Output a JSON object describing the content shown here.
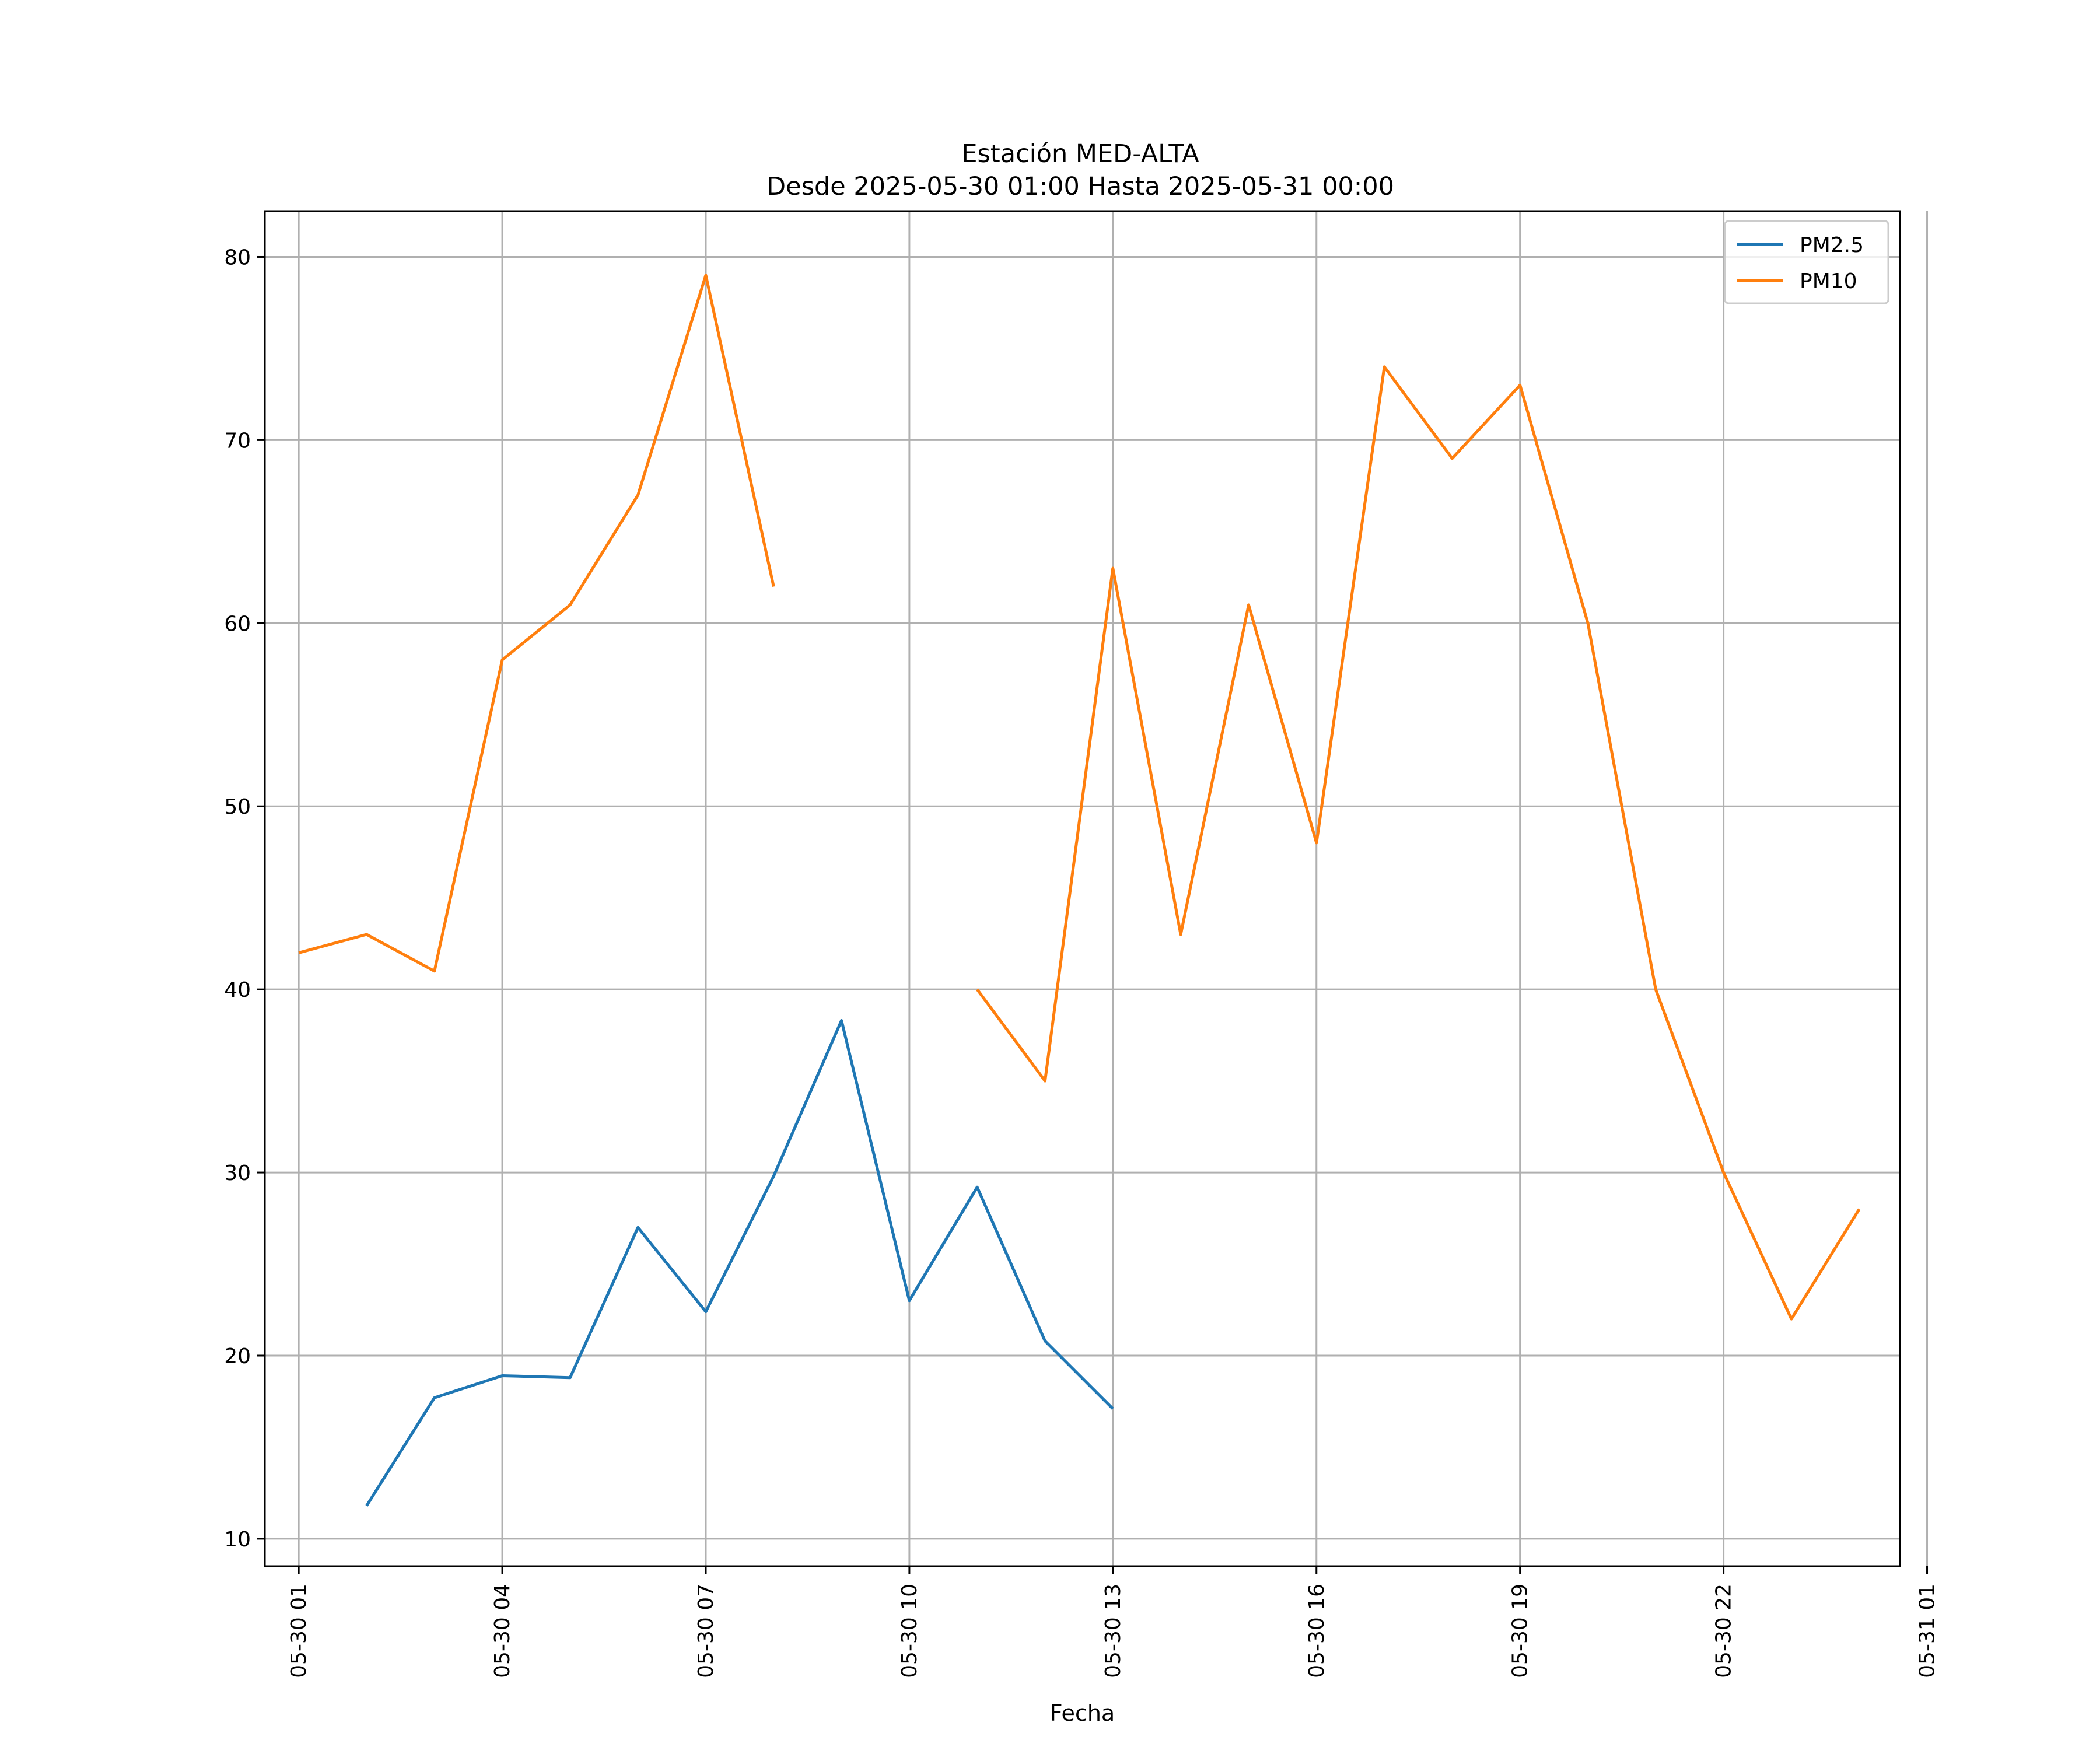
{
  "chart_data": {
    "type": "line",
    "title_line1": "Estación MED-ALTA",
    "title_line2": "Desde 2025-05-30 01:00 Hasta 2025-05-31 00:00",
    "xlabel": "Fecha",
    "ylabel": "",
    "x_range": [
      0.5,
      24.6
    ],
    "ylim": [
      8.5,
      82.5
    ],
    "grid": true,
    "legend_position": "top-right",
    "x_ticks": [
      {
        "x": 1,
        "label": "05-30 01"
      },
      {
        "x": 4,
        "label": "05-30 04"
      },
      {
        "x": 7,
        "label": "05-30 07"
      },
      {
        "x": 10,
        "label": "05-30 10"
      },
      {
        "x": 13,
        "label": "05-30 13"
      },
      {
        "x": 16,
        "label": "05-30 16"
      },
      {
        "x": 19,
        "label": "05-30 19"
      },
      {
        "x": 22,
        "label": "05-30 22"
      },
      {
        "x": 25,
        "label": "05-31 01"
      }
    ],
    "y_ticks": [
      10,
      20,
      30,
      40,
      50,
      60,
      70,
      80
    ],
    "series": [
      {
        "name": "PM2.5",
        "color": "#1f77b4",
        "x": [
          1,
          2,
          3,
          4,
          5,
          6,
          7,
          8,
          9,
          10,
          11,
          12,
          13,
          14,
          15,
          16,
          17,
          18,
          19,
          20,
          21,
          22,
          23,
          24
        ],
        "values": [
          null,
          11.8,
          17.7,
          18.9,
          18.8,
          27.0,
          22.4,
          29.8,
          38.3,
          23.0,
          29.2,
          20.8,
          17.1,
          null,
          null,
          null,
          null,
          null,
          null,
          null,
          null,
          null,
          null,
          null
        ]
      },
      {
        "name": "PM10",
        "color": "#ff7f0e",
        "x": [
          1,
          2,
          3,
          4,
          5,
          6,
          7,
          8,
          9,
          10,
          11,
          12,
          13,
          14,
          15,
          16,
          17,
          18,
          19,
          20,
          21,
          22,
          23,
          24
        ],
        "values": [
          42,
          43,
          41,
          58,
          61,
          67,
          79,
          62,
          null,
          null,
          40,
          35,
          63,
          43,
          61,
          48,
          74,
          69,
          73,
          60,
          40,
          30,
          22,
          28
        ]
      }
    ]
  }
}
